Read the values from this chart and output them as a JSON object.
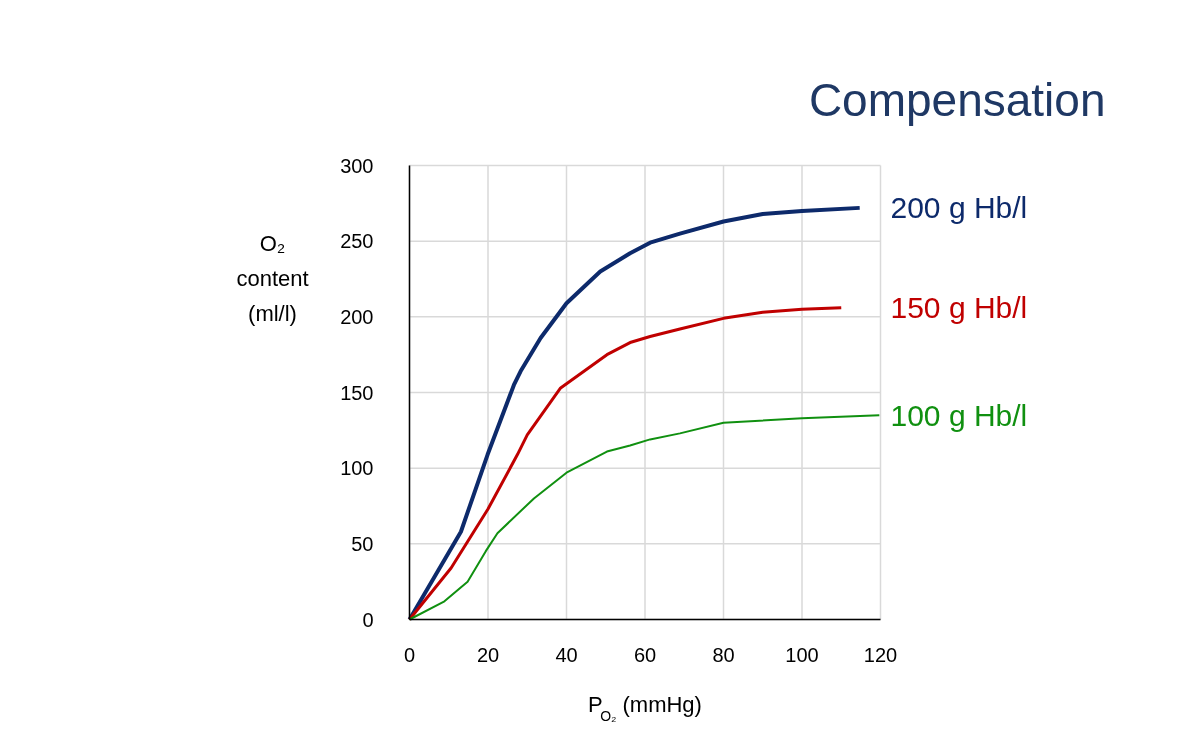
{
  "chart_data": {
    "type": "line",
    "title": "Compensation",
    "xlabel": "P$_{O₂}$ (mmHg)",
    "ylabel": "O₂\ncontent\n(ml/l)",
    "xlim": [
      0,
      120
    ],
    "xticks": [
      0,
      20,
      40,
      60,
      80,
      100,
      120
    ],
    "ylim": [
      0,
      300
    ],
    "yticks": [
      0,
      50,
      100,
      150,
      200,
      250,
      300
    ],
    "grid": true,
    "legend": false,
    "marker": "none",
    "line_style": "solid",
    "series": [
      {
        "name": "200 g Hb/l",
        "color": "#0d2a6b",
        "x": [
          0,
          13.1,
          19.9,
          26.6,
          28.3,
          33.4,
          40,
          48.6,
          56.2,
          61.3,
          68.9,
          80,
          90,
          100,
          114.7
        ],
        "values": [
          0,
          58,
          109,
          155,
          164,
          186,
          209,
          230,
          242,
          249,
          255,
          263,
          268,
          270,
          272
        ]
      },
      {
        "name": "150 g Hb/l",
        "color": "#c00000",
        "x": [
          0,
          10.6,
          20,
          27.5,
          30,
          38.5,
          50.3,
          56.2,
          61.3,
          68.9,
          80,
          90,
          100,
          110
        ],
        "values": [
          0,
          34,
          73,
          109,
          122,
          153,
          175,
          183,
          187,
          192,
          199,
          203,
          205,
          206
        ]
      },
      {
        "name": "100 g Hb/l",
        "color": "#109010",
        "x": [
          0,
          8.9,
          14.8,
          19.4,
          22.4,
          31.7,
          40,
          50.3,
          56.2,
          61.3,
          68.9,
          80,
          100,
          119.7
        ],
        "values": [
          0,
          12,
          25,
          45,
          57,
          80,
          97,
          111,
          115,
          119,
          123,
          130,
          133,
          135
        ]
      }
    ]
  }
}
